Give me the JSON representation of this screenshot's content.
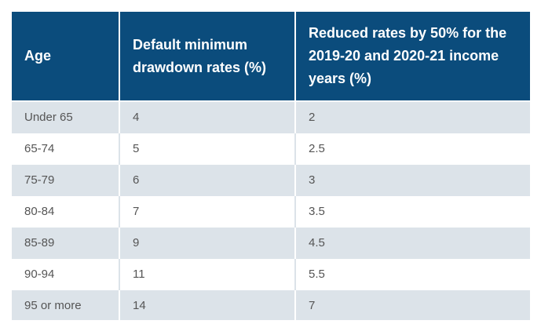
{
  "table": {
    "header": [
      "Age",
      "Default minimum drawdown rates (%)",
      "Reduced rates by 50% for the 2019-20 and 2020-21 income years (%)"
    ],
    "rows": [
      [
        "Under 65",
        4,
        2
      ],
      [
        "65-74",
        5,
        2.5
      ],
      [
        "75-79",
        6,
        3
      ],
      [
        "80-84",
        7,
        3.5
      ],
      [
        "85-89",
        9,
        4.5
      ],
      [
        "90-94",
        11,
        5.5
      ],
      [
        "95 or more",
        14,
        7
      ]
    ]
  }
}
